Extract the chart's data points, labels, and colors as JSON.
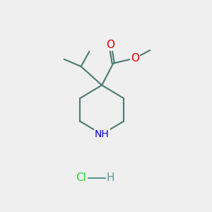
{
  "bg_color": "#efefef",
  "bond_color": "#4a7a70",
  "bond_width": 1.5,
  "atom_colors": {
    "O": "#dd0000",
    "N": "#0000cc",
    "Cl": "#33cc33",
    "H_dash": "#5a9a90"
  },
  "font_size_atom": 10,
  "font_size_hcl": 11,
  "figsize": [
    3.0,
    3.0
  ],
  "dpi": 100
}
